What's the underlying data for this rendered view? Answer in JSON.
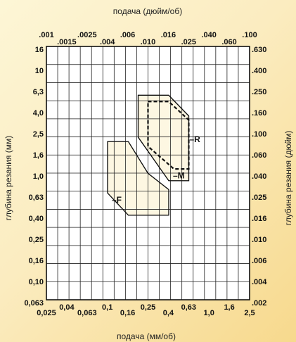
{
  "chart_data": {
    "type": "area",
    "title": "",
    "x_axis_bottom": {
      "label": "подача (мм/об)",
      "scale": "log",
      "ticks": [
        "0,025",
        "0,04",
        "0,063",
        "0,1",
        "0,16",
        "0,25",
        "0,4",
        "0,63",
        "1,0",
        "1,6",
        "2,5"
      ]
    },
    "x_axis_top": {
      "label": "подача (дюйм/об)",
      "scale": "log",
      "ticks": [
        ".001",
        ".0015",
        ".0025",
        ".004",
        ".006",
        ".010",
        ".016",
        ".025",
        ".040",
        ".060",
        ".100"
      ]
    },
    "y_axis_left": {
      "label": "глубина резания (мм)",
      "scale": "log",
      "ticks": [
        "16",
        "10",
        "6,3",
        "4,0",
        "2,5",
        "1,6",
        "1,0",
        "0,63",
        "0,40",
        "0,25",
        "0,16",
        "0,10",
        "0,063"
      ]
    },
    "y_axis_right": {
      "label": "глубина резания (дюйм)",
      "scale": "log",
      "ticks": [
        ".630",
        ".400",
        ".250",
        ".160",
        ".100",
        ".060",
        ".040",
        ".025",
        ".016",
        ".010",
        ".006",
        ".004",
        ".002"
      ]
    },
    "grid": true,
    "regions": [
      {
        "name": "–F",
        "style": "filled",
        "points": [
          [
            0.1,
            2.0
          ],
          [
            0.16,
            2.0
          ],
          [
            0.25,
            1.0
          ],
          [
            0.4,
            0.7
          ],
          [
            0.4,
            0.4
          ],
          [
            0.16,
            0.4
          ],
          [
            0.1,
            0.65
          ]
        ]
      },
      {
        "name": "–M",
        "style": "filled",
        "points": [
          [
            0.2,
            5.5
          ],
          [
            0.4,
            5.5
          ],
          [
            0.63,
            3.5
          ],
          [
            0.63,
            0.85
          ],
          [
            0.4,
            0.85
          ],
          [
            0.2,
            2.2
          ]
        ]
      },
      {
        "name": "–R",
        "style": "dashed",
        "points": [
          [
            0.25,
            4.8
          ],
          [
            0.4,
            4.8
          ],
          [
            0.63,
            3.2
          ],
          [
            0.63,
            1.1
          ],
          [
            0.45,
            1.1
          ],
          [
            0.25,
            1.8
          ]
        ]
      }
    ]
  }
}
